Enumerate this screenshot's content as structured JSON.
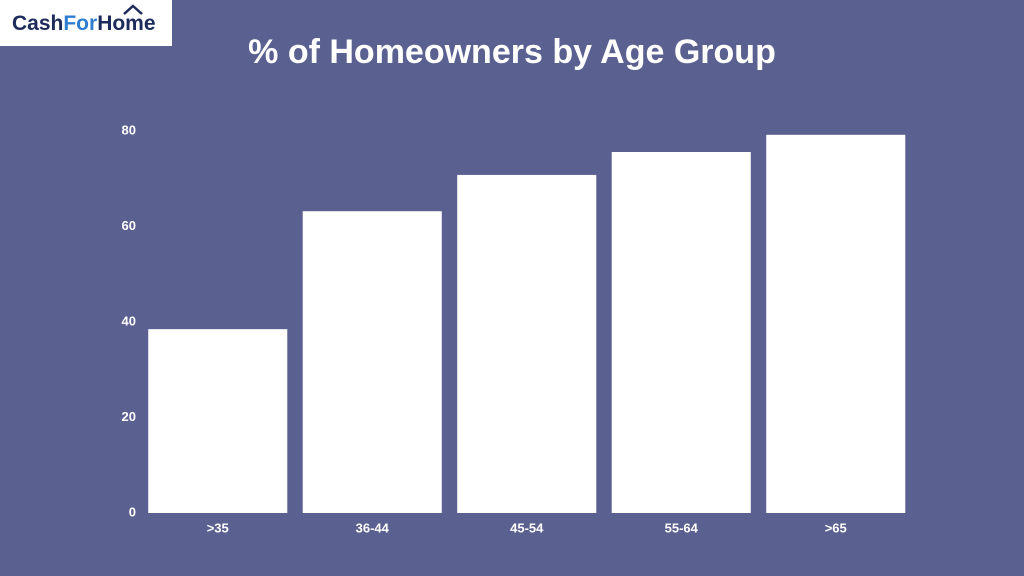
{
  "logo_parts": [
    "Cash",
    "For",
    "Home"
  ],
  "chart_data": {
    "type": "bar",
    "title": "% of Homeowners by Age Group",
    "categories": [
      ">35",
      "36-44",
      "45-54",
      "55-64",
      ">65"
    ],
    "values": [
      38.5,
      63.2,
      70.8,
      75.6,
      79.2
    ],
    "color": "#ffffff",
    "ylim": [
      0,
      80
    ],
    "yticks": [
      0,
      20,
      40,
      60,
      80
    ],
    "grid": false
  }
}
